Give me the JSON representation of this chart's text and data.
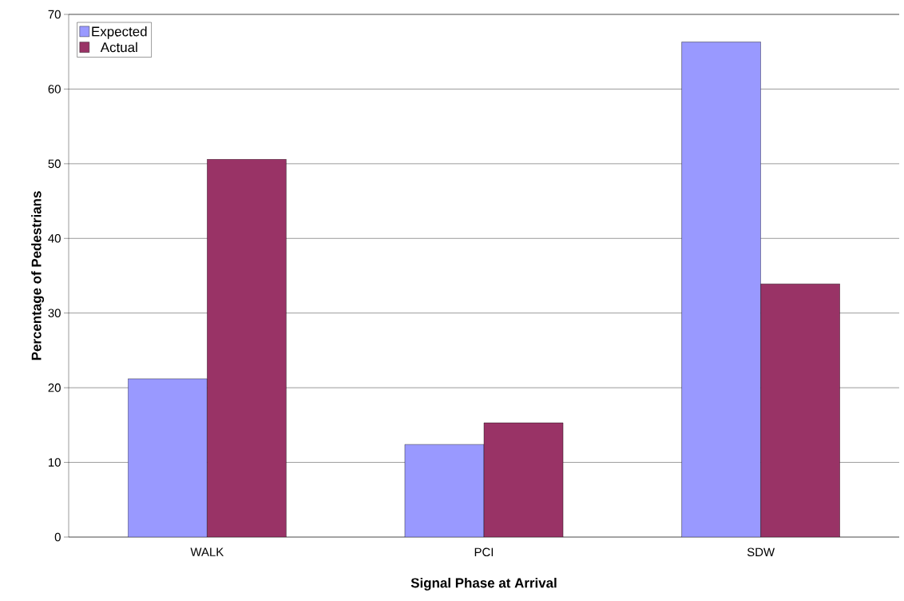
{
  "chart_data": {
    "type": "bar",
    "xlabel": "Signal Phase at Arrival",
    "ylabel": "Percentage of Pedestrians",
    "categories": [
      "WALK",
      "PCI",
      "SDW"
    ],
    "series": [
      {
        "name": "Expected",
        "color": "#9999ff",
        "values": [
          21.2,
          12.4,
          66.3
        ]
      },
      {
        "name": "Actual",
        "color": "#993366",
        "values": [
          50.6,
          15.3,
          33.9
        ]
      }
    ],
    "ylim": [
      0,
      70
    ],
    "yticks": [
      0,
      10,
      20,
      30,
      40,
      50,
      60,
      70
    ],
    "grid": "y",
    "legend": "top left"
  }
}
